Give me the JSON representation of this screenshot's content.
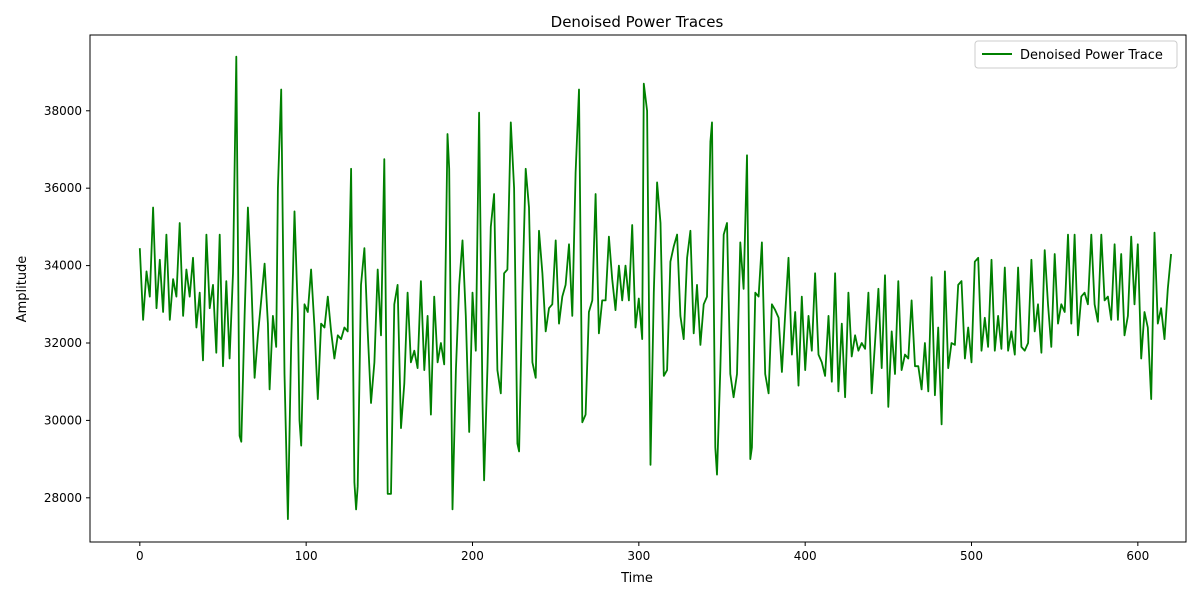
{
  "chart_data": {
    "type": "line",
    "title": "Denoised Power Traces",
    "xlabel": "Time",
    "ylabel": "Amplitude",
    "xlim": [
      -29.95,
      628.95
    ],
    "ylim": [
      26858,
      39958
    ],
    "xticks": [
      0,
      100,
      200,
      300,
      400,
      500,
      600
    ],
    "yticks": [
      28000,
      30000,
      32000,
      34000,
      36000,
      38000
    ],
    "grid": false,
    "legend": "upper right",
    "series": [
      {
        "name": "Denoised Power Trace",
        "color": "#008000",
        "points": [
          [
            0,
            34450
          ],
          [
            2,
            32600
          ],
          [
            4,
            33850
          ],
          [
            6,
            33200
          ],
          [
            8,
            35500
          ],
          [
            10,
            32900
          ],
          [
            12,
            34150
          ],
          [
            14,
            32800
          ],
          [
            16,
            34800
          ],
          [
            18,
            32600
          ],
          [
            20,
            33650
          ],
          [
            22,
            33200
          ],
          [
            24,
            35100
          ],
          [
            26,
            32700
          ],
          [
            28,
            33900
          ],
          [
            30,
            33200
          ],
          [
            32,
            34200
          ],
          [
            34,
            32400
          ],
          [
            36,
            33300
          ],
          [
            38,
            31550
          ],
          [
            40,
            34800
          ],
          [
            42,
            32900
          ],
          [
            44,
            33500
          ],
          [
            46,
            31750
          ],
          [
            48,
            34800
          ],
          [
            50,
            31400
          ],
          [
            52,
            33600
          ],
          [
            54,
            31600
          ],
          [
            56,
            33800
          ],
          [
            58,
            39400
          ],
          [
            60,
            29600
          ],
          [
            61,
            29450
          ],
          [
            63,
            32700
          ],
          [
            65,
            35500
          ],
          [
            67,
            33600
          ],
          [
            69,
            31100
          ],
          [
            71,
            32200
          ],
          [
            73,
            33100
          ],
          [
            75,
            34050
          ],
          [
            77,
            32500
          ],
          [
            78,
            30800
          ],
          [
            80,
            32700
          ],
          [
            82,
            31900
          ],
          [
            83,
            36000
          ],
          [
            85,
            38550
          ],
          [
            87,
            31200
          ],
          [
            89,
            27450
          ],
          [
            91,
            32000
          ],
          [
            93,
            35400
          ],
          [
            95,
            32800
          ],
          [
            96,
            30000
          ],
          [
            97,
            29350
          ],
          [
            99,
            33000
          ],
          [
            101,
            32800
          ],
          [
            103,
            33900
          ],
          [
            105,
            32400
          ],
          [
            107,
            30550
          ],
          [
            109,
            32500
          ],
          [
            111,
            32400
          ],
          [
            113,
            33200
          ],
          [
            115,
            32300
          ],
          [
            117,
            31600
          ],
          [
            119,
            32200
          ],
          [
            121,
            32100
          ],
          [
            123,
            32400
          ],
          [
            125,
            32300
          ],
          [
            127,
            36500
          ],
          [
            129,
            28400
          ],
          [
            130,
            27700
          ],
          [
            131,
            28300
          ],
          [
            133,
            33500
          ],
          [
            135,
            34450
          ],
          [
            137,
            32300
          ],
          [
            139,
            30450
          ],
          [
            141,
            31500
          ],
          [
            143,
            33900
          ],
          [
            145,
            32200
          ],
          [
            147,
            36750
          ],
          [
            149,
            28100
          ],
          [
            151,
            28100
          ],
          [
            153,
            33000
          ],
          [
            155,
            33500
          ],
          [
            157,
            29800
          ],
          [
            159,
            30950
          ],
          [
            161,
            33300
          ],
          [
            163,
            31500
          ],
          [
            165,
            31800
          ],
          [
            167,
            31350
          ],
          [
            169,
            33600
          ],
          [
            171,
            31300
          ],
          [
            173,
            32700
          ],
          [
            175,
            30150
          ],
          [
            177,
            33200
          ],
          [
            179,
            31500
          ],
          [
            181,
            32000
          ],
          [
            183,
            31450
          ],
          [
            185,
            37400
          ],
          [
            186,
            36500
          ],
          [
            188,
            27700
          ],
          [
            190,
            31300
          ],
          [
            192,
            33500
          ],
          [
            194,
            34650
          ],
          [
            196,
            32700
          ],
          [
            198,
            29700
          ],
          [
            200,
            33300
          ],
          [
            202,
            31800
          ],
          [
            204,
            37950
          ],
          [
            206,
            30500
          ],
          [
            207,
            28450
          ],
          [
            209,
            31400
          ],
          [
            211,
            35000
          ],
          [
            213,
            35850
          ],
          [
            215,
            31300
          ],
          [
            217,
            30700
          ],
          [
            219,
            33800
          ],
          [
            221,
            33900
          ],
          [
            223,
            37700
          ],
          [
            225,
            36000
          ],
          [
            227,
            29400
          ],
          [
            228,
            29200
          ],
          [
            230,
            33300
          ],
          [
            232,
            36500
          ],
          [
            234,
            35500
          ],
          [
            236,
            31500
          ],
          [
            238,
            31100
          ],
          [
            240,
            34900
          ],
          [
            242,
            33800
          ],
          [
            244,
            32300
          ],
          [
            246,
            32900
          ],
          [
            248,
            33000
          ],
          [
            250,
            34650
          ],
          [
            252,
            32500
          ],
          [
            254,
            33200
          ],
          [
            256,
            33500
          ],
          [
            258,
            34550
          ],
          [
            260,
            32700
          ],
          [
            262,
            36400
          ],
          [
            264,
            38550
          ],
          [
            266,
            29950
          ],
          [
            268,
            30150
          ],
          [
            270,
            32800
          ],
          [
            272,
            33100
          ],
          [
            274,
            35850
          ],
          [
            276,
            32250
          ],
          [
            278,
            33100
          ],
          [
            280,
            33100
          ],
          [
            282,
            34750
          ],
          [
            284,
            33650
          ],
          [
            286,
            32850
          ],
          [
            288,
            34000
          ],
          [
            290,
            33100
          ],
          [
            292,
            34000
          ],
          [
            294,
            33100
          ],
          [
            296,
            35050
          ],
          [
            298,
            32400
          ],
          [
            300,
            33150
          ],
          [
            302,
            32100
          ],
          [
            303,
            38700
          ],
          [
            305,
            38000
          ],
          [
            307,
            28850
          ],
          [
            309,
            33300
          ],
          [
            311,
            36150
          ],
          [
            313,
            35100
          ],
          [
            315,
            31150
          ],
          [
            317,
            31300
          ],
          [
            319,
            34100
          ],
          [
            321,
            34500
          ],
          [
            323,
            34800
          ],
          [
            325,
            32700
          ],
          [
            327,
            32100
          ],
          [
            329,
            34200
          ],
          [
            331,
            34900
          ],
          [
            333,
            32250
          ],
          [
            335,
            33500
          ],
          [
            337,
            31950
          ],
          [
            339,
            33000
          ],
          [
            341,
            33200
          ],
          [
            343,
            37200
          ],
          [
            344,
            37700
          ],
          [
            346,
            29300
          ],
          [
            347,
            28600
          ],
          [
            349,
            31300
          ],
          [
            351,
            34800
          ],
          [
            353,
            35100
          ],
          [
            355,
            31200
          ],
          [
            357,
            30600
          ],
          [
            359,
            31200
          ],
          [
            361,
            34600
          ],
          [
            363,
            33400
          ],
          [
            365,
            36850
          ],
          [
            367,
            29000
          ],
          [
            368,
            29300
          ],
          [
            370,
            33300
          ],
          [
            372,
            33200
          ],
          [
            374,
            34600
          ],
          [
            376,
            31200
          ],
          [
            378,
            30700
          ],
          [
            380,
            33000
          ],
          [
            382,
            32850
          ],
          [
            384,
            32650
          ],
          [
            386,
            31250
          ],
          [
            388,
            32750
          ],
          [
            390,
            34200
          ],
          [
            392,
            31700
          ],
          [
            394,
            32800
          ],
          [
            396,
            30900
          ],
          [
            398,
            33200
          ],
          [
            400,
            31300
          ],
          [
            402,
            32700
          ],
          [
            404,
            31800
          ],
          [
            406,
            33800
          ],
          [
            408,
            31700
          ],
          [
            410,
            31500
          ],
          [
            412,
            31150
          ],
          [
            414,
            32700
          ],
          [
            416,
            31000
          ],
          [
            418,
            33800
          ],
          [
            420,
            30750
          ],
          [
            422,
            32500
          ],
          [
            424,
            30600
          ],
          [
            426,
            33300
          ],
          [
            428,
            31650
          ],
          [
            430,
            32200
          ],
          [
            432,
            31800
          ],
          [
            434,
            32000
          ],
          [
            436,
            31850
          ],
          [
            438,
            33300
          ],
          [
            440,
            30700
          ],
          [
            442,
            32000
          ],
          [
            444,
            33400
          ],
          [
            446,
            31350
          ],
          [
            448,
            33750
          ],
          [
            450,
            30350
          ],
          [
            452,
            32300
          ],
          [
            454,
            31200
          ],
          [
            456,
            33600
          ],
          [
            458,
            31300
          ],
          [
            460,
            31700
          ],
          [
            462,
            31600
          ],
          [
            464,
            33100
          ],
          [
            466,
            31400
          ],
          [
            468,
            31400
          ],
          [
            470,
            30800
          ],
          [
            472,
            32000
          ],
          [
            474,
            30750
          ],
          [
            476,
            33700
          ],
          [
            478,
            30650
          ],
          [
            480,
            32400
          ],
          [
            482,
            29900
          ],
          [
            484,
            33850
          ],
          [
            486,
            31350
          ],
          [
            488,
            32000
          ],
          [
            490,
            31950
          ],
          [
            492,
            33500
          ],
          [
            494,
            33600
          ],
          [
            496,
            31600
          ],
          [
            498,
            32400
          ],
          [
            500,
            31500
          ],
          [
            502,
            34100
          ],
          [
            504,
            34200
          ],
          [
            506,
            31800
          ],
          [
            508,
            32650
          ],
          [
            510,
            31900
          ],
          [
            512,
            34150
          ],
          [
            514,
            31800
          ],
          [
            516,
            32700
          ],
          [
            518,
            31850
          ],
          [
            520,
            33950
          ],
          [
            522,
            31800
          ],
          [
            524,
            32300
          ],
          [
            526,
            31700
          ],
          [
            528,
            33950
          ],
          [
            530,
            31900
          ],
          [
            532,
            31800
          ],
          [
            534,
            32000
          ],
          [
            536,
            34150
          ],
          [
            538,
            32300
          ],
          [
            540,
            33000
          ],
          [
            542,
            31750
          ],
          [
            544,
            34400
          ],
          [
            546,
            33000
          ],
          [
            548,
            31900
          ],
          [
            550,
            34300
          ],
          [
            552,
            32500
          ],
          [
            554,
            33000
          ],
          [
            556,
            32800
          ],
          [
            558,
            34800
          ],
          [
            560,
            32500
          ],
          [
            562,
            34800
          ],
          [
            564,
            32200
          ],
          [
            566,
            33200
          ],
          [
            568,
            33300
          ],
          [
            570,
            33000
          ],
          [
            572,
            34800
          ],
          [
            574,
            33000
          ],
          [
            576,
            32550
          ],
          [
            578,
            34800
          ],
          [
            580,
            33100
          ],
          [
            582,
            33200
          ],
          [
            584,
            32600
          ],
          [
            586,
            34550
          ],
          [
            588,
            32600
          ],
          [
            590,
            34300
          ],
          [
            592,
            32200
          ],
          [
            594,
            32700
          ],
          [
            596,
            34750
          ],
          [
            598,
            33000
          ],
          [
            600,
            34550
          ],
          [
            602,
            31600
          ],
          [
            604,
            32800
          ],
          [
            606,
            32400
          ],
          [
            608,
            30550
          ],
          [
            610,
            34850
          ],
          [
            612,
            32500
          ],
          [
            614,
            32900
          ],
          [
            616,
            32100
          ],
          [
            618,
            33400
          ],
          [
            620,
            34300
          ]
        ]
      }
    ]
  }
}
